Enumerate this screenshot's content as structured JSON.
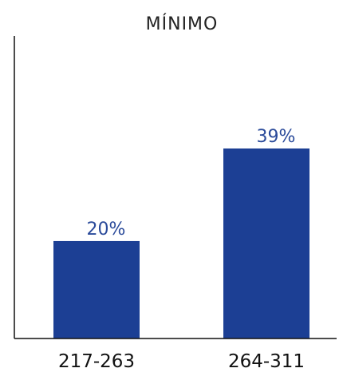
{
  "chart_data": {
    "type": "bar",
    "title": "MÍNIMO",
    "categories": [
      "217-263",
      "264-311"
    ],
    "values": [
      20,
      39
    ],
    "data_labels": [
      "20%",
      "39%"
    ],
    "xlabel": "",
    "ylabel": "",
    "ylim": [
      0,
      50
    ],
    "grid": false,
    "legend": "none"
  },
  "colors": {
    "bar": "#1c3f94",
    "data_label": "#2a4a9a",
    "axis": "#111111",
    "title": "#222222"
  }
}
